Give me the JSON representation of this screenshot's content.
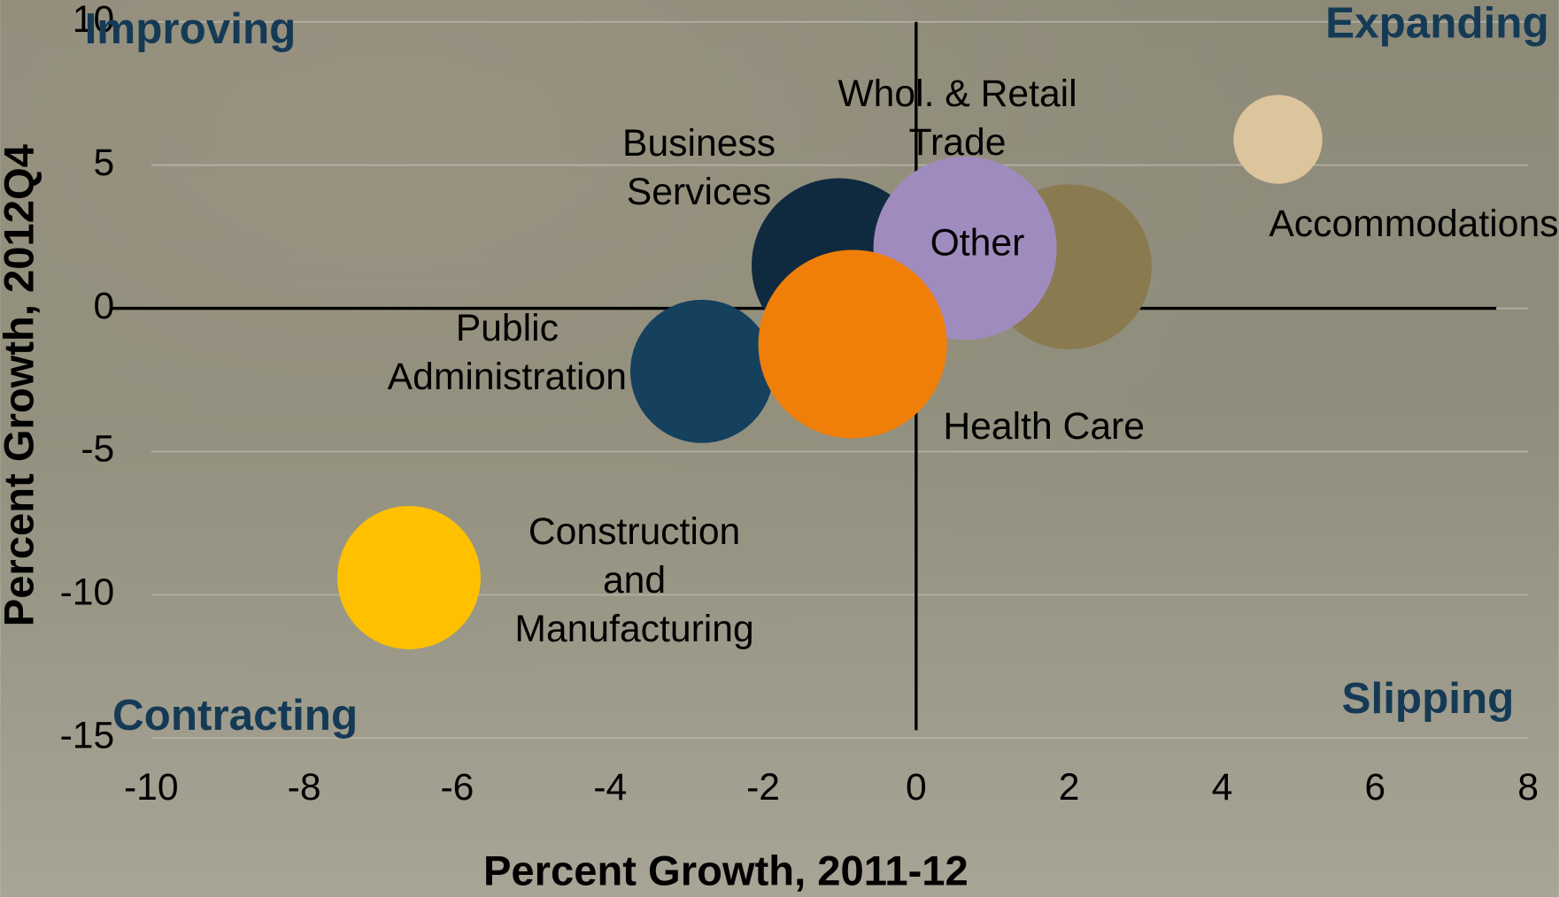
{
  "chart_data": {
    "type": "bubble",
    "x_label": "Percent Growth, 2011-12",
    "y_label": "Percent Growth, 2012Q4",
    "annotations": [
      "Improving",
      "Expanding",
      "Contracting",
      "Slipping"
    ],
    "xlim": [
      -10,
      8
    ],
    "xticks": [
      -10,
      -8,
      -6,
      -4,
      -2,
      0,
      2,
      4,
      6,
      8
    ],
    "ylim": [
      -15,
      10
    ],
    "yticks": [
      -15,
      -10,
      -5,
      0,
      5,
      10
    ],
    "grid": true,
    "series": [
      {
        "name": "Accommodations",
        "color": "#dcc49c",
        "x": 4.73,
        "y": 5.9,
        "size": 20
      },
      {
        "name": "Business Services",
        "color": "#0f2a3f",
        "x": -1.01,
        "y": 1.5,
        "size": 77
      },
      {
        "name": "Whol. & Retail Trade",
        "color": "#8a7a50",
        "x": 2.0,
        "y": 1.45,
        "size": 69
      },
      {
        "name": "Other",
        "color": "#a08bbf",
        "x": 0.64,
        "y": 2.1,
        "size": 85
      },
      {
        "name": "Public Administration",
        "color": "#15405e",
        "x": -2.8,
        "y": -2.2,
        "size": 52
      },
      {
        "name": "Health Care",
        "color": "#f07f0a",
        "x": -0.83,
        "y": -1.25,
        "size": 90
      },
      {
        "name": "Construction and Manufacturing",
        "color": "#ffc000",
        "x": -6.63,
        "y": -9.4,
        "size": 52
      }
    ]
  }
}
